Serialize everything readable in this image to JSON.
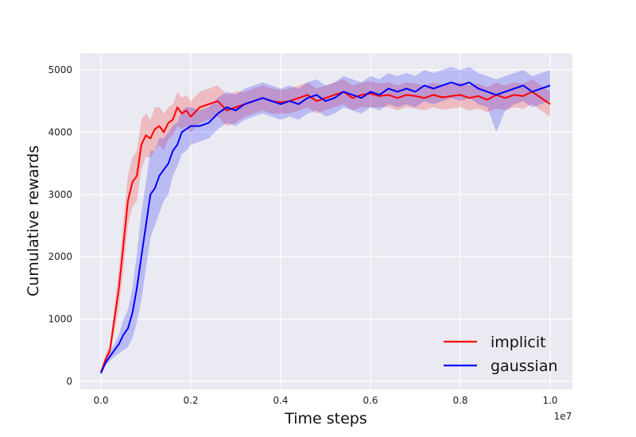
{
  "chart_data": {
    "type": "line",
    "title": "",
    "xlabel": "Time steps",
    "ylabel": "Cumulative rewards",
    "x_offset_label": "1e7",
    "xlim": [
      0.0,
      1.0
    ],
    "ylim": [
      0,
      5000
    ],
    "xticks": [
      "0.0",
      "0.2",
      "0.4",
      "0.6",
      "0.8",
      "1.0"
    ],
    "xtick_values": [
      0.0,
      0.2,
      0.4,
      0.6,
      0.8,
      1.0
    ],
    "yticks": [
      "0",
      "1000",
      "2000",
      "3000",
      "4000",
      "5000"
    ],
    "ytick_values": [
      0,
      1000,
      2000,
      3000,
      4000,
      5000
    ],
    "grid": true,
    "background": "#eaeaf2",
    "legend_position": "bottom-right",
    "series": [
      {
        "name": "implicit",
        "color": "#ff0000",
        "x": [
          0.0,
          0.01,
          0.02,
          0.03,
          0.04,
          0.05,
          0.06,
          0.07,
          0.08,
          0.09,
          0.1,
          0.11,
          0.12,
          0.13,
          0.14,
          0.15,
          0.16,
          0.17,
          0.18,
          0.19,
          0.2,
          0.22,
          0.24,
          0.26,
          0.28,
          0.3,
          0.32,
          0.34,
          0.36,
          0.38,
          0.4,
          0.42,
          0.44,
          0.46,
          0.48,
          0.5,
          0.52,
          0.54,
          0.56,
          0.58,
          0.6,
          0.62,
          0.64,
          0.66,
          0.68,
          0.7,
          0.72,
          0.74,
          0.76,
          0.78,
          0.8,
          0.82,
          0.84,
          0.86,
          0.88,
          0.9,
          0.92,
          0.94,
          0.96,
          0.98,
          1.0
        ],
        "y": [
          150,
          350,
          500,
          1000,
          1500,
          2200,
          2900,
          3200,
          3300,
          3800,
          3950,
          3900,
          4050,
          4100,
          4000,
          4150,
          4200,
          4400,
          4300,
          4350,
          4250,
          4400,
          4450,
          4500,
          4350,
          4400,
          4450,
          4500,
          4550,
          4500,
          4480,
          4500,
          4550,
          4600,
          4500,
          4550,
          4600,
          4650,
          4550,
          4600,
          4620,
          4580,
          4600,
          4550,
          4600,
          4580,
          4550,
          4600,
          4560,
          4580,
          4600,
          4550,
          4580,
          4520,
          4600,
          4550,
          4600,
          4580,
          4650,
          4550,
          4450
        ],
        "lower": [
          120,
          280,
          420,
          800,
          1200,
          1800,
          2500,
          2800,
          2900,
          3400,
          3600,
          3600,
          3700,
          3800,
          3700,
          3900,
          3950,
          4100,
          4050,
          4100,
          4000,
          4150,
          4200,
          4250,
          4100,
          4150,
          4250,
          4300,
          4350,
          4300,
          4300,
          4300,
          4350,
          4400,
          4300,
          4350,
          4400,
          4450,
          4350,
          4400,
          4400,
          4400,
          4400,
          4350,
          4400,
          4380,
          4350,
          4400,
          4360,
          4380,
          4400,
          4350,
          4380,
          4320,
          4380,
          4350,
          4400,
          4380,
          4450,
          4350,
          4250
        ],
        "upper": [
          180,
          420,
          600,
          1200,
          1800,
          2600,
          3300,
          3600,
          3700,
          4200,
          4300,
          4200,
          4400,
          4400,
          4300,
          4400,
          4450,
          4650,
          4550,
          4600,
          4500,
          4650,
          4700,
          4750,
          4600,
          4650,
          4650,
          4700,
          4750,
          4700,
          4680,
          4700,
          4750,
          4800,
          4700,
          4750,
          4800,
          4850,
          4750,
          4800,
          4820,
          4780,
          4800,
          4750,
          4800,
          4780,
          4750,
          4800,
          4760,
          4780,
          4800,
          4750,
          4780,
          4720,
          4800,
          4750,
          4800,
          4780,
          4850,
          4750,
          4650
        ]
      },
      {
        "name": "gaussian",
        "color": "#0000ff",
        "x": [
          0.0,
          0.01,
          0.02,
          0.03,
          0.04,
          0.05,
          0.06,
          0.07,
          0.08,
          0.09,
          0.1,
          0.11,
          0.12,
          0.13,
          0.14,
          0.15,
          0.16,
          0.17,
          0.18,
          0.19,
          0.2,
          0.22,
          0.24,
          0.26,
          0.28,
          0.3,
          0.32,
          0.34,
          0.36,
          0.38,
          0.4,
          0.42,
          0.44,
          0.46,
          0.48,
          0.5,
          0.52,
          0.54,
          0.56,
          0.58,
          0.6,
          0.62,
          0.64,
          0.66,
          0.68,
          0.7,
          0.72,
          0.74,
          0.76,
          0.78,
          0.8,
          0.82,
          0.84,
          0.86,
          0.88,
          0.9,
          0.92,
          0.94,
          0.96,
          0.98,
          1.0
        ],
        "y": [
          130,
          300,
          400,
          500,
          600,
          750,
          850,
          1100,
          1500,
          2000,
          2500,
          3000,
          3100,
          3300,
          3400,
          3500,
          3700,
          3800,
          4000,
          4050,
          4100,
          4100,
          4150,
          4300,
          4400,
          4350,
          4450,
          4500,
          4550,
          4500,
          4450,
          4500,
          4450,
          4550,
          4600,
          4500,
          4550,
          4650,
          4600,
          4550,
          4650,
          4600,
          4700,
          4650,
          4700,
          4650,
          4750,
          4700,
          4750,
          4800,
          4750,
          4800,
          4700,
          4650,
          4600,
          4650,
          4700,
          4750,
          4650,
          4700,
          4750
        ],
        "lower": [
          110,
          250,
          330,
          400,
          450,
          500,
          550,
          700,
          950,
          1300,
          1800,
          2300,
          2500,
          2700,
          2900,
          3000,
          3300,
          3450,
          3650,
          3700,
          3800,
          3850,
          3900,
          4050,
          4150,
          4100,
          4200,
          4250,
          4300,
          4250,
          4200,
          4250,
          4200,
          4300,
          4350,
          4250,
          4300,
          4400,
          4350,
          4300,
          4400,
          4350,
          4450,
          4400,
          4450,
          4400,
          4500,
          4450,
          4500,
          4550,
          4500,
          4550,
          4450,
          4400,
          4000,
          4350,
          4450,
          4500,
          4400,
          4450,
          4500
        ],
        "upper": [
          150,
          350,
          470,
          600,
          750,
          1000,
          1150,
          1500,
          2050,
          2700,
          3200,
          3700,
          3700,
          3900,
          3900,
          4000,
          4100,
          4150,
          4350,
          4400,
          4400,
          4350,
          4400,
          4550,
          4650,
          4600,
          4700,
          4750,
          4800,
          4750,
          4700,
          4750,
          4700,
          4800,
          4850,
          4750,
          4800,
          4900,
          4850,
          4800,
          4900,
          4850,
          4950,
          4900,
          4950,
          4900,
          5000,
          4950,
          5000,
          5050,
          5000,
          5050,
          4950,
          4900,
          4850,
          4900,
          4950,
          5000,
          4900,
          4950,
          5000
        ]
      }
    ]
  }
}
